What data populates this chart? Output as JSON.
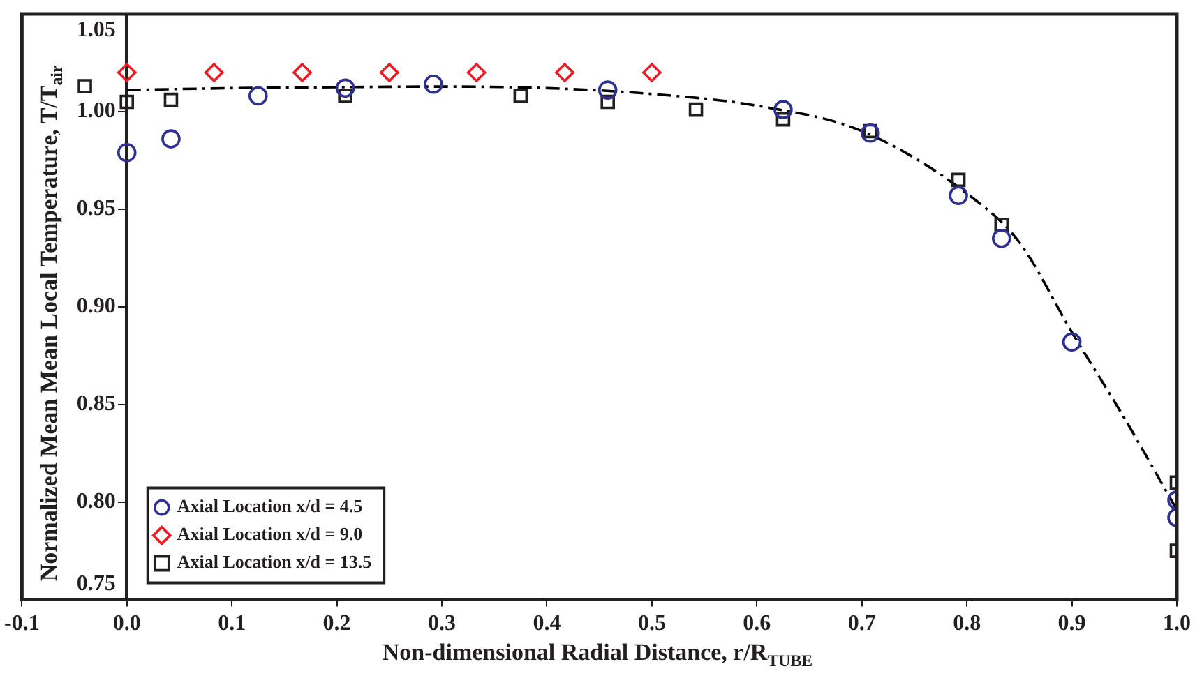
{
  "chart_data": {
    "type": "scatter",
    "xlabel": "Non-dimensional Radial Distance, r/R$_{TUBE}$",
    "ylabel": "Normalized Mean Mean Local Temperature, T/T$_{air}$",
    "xlim": [
      -0.1,
      1.0
    ],
    "xticks": [
      -0.1,
      {
        "value": 0,
        "label": "0.0"
      },
      0.1,
      0.2,
      0.3,
      0.4,
      0.5,
      0.6,
      0.7,
      0.8,
      0.9,
      {
        "value": 1,
        "label": "1.0"
      }
    ],
    "ylim": [
      0.75,
      1.05
    ],
    "yticks": [
      0.75,
      {
        "value": 0.8,
        "label": "0.80"
      },
      0.85,
      {
        "value": 0.9,
        "label": "0.90"
      },
      0.95,
      {
        "value": 1,
        "label": "1.00"
      },
      1.05
    ],
    "grid": false,
    "legend": "bottom left",
    "series": [
      {
        "name": "Axial Location x/d = 4.5",
        "marker": "circle",
        "color": "#2e3192",
        "x": [
          0,
          0.042,
          0.125,
          0.208,
          0.292,
          0.458,
          0.625,
          0.708,
          0.792,
          0.833,
          0.9,
          1.0,
          1.0
        ],
        "values": [
          0.979,
          0.986,
          1.008,
          1.012,
          1.014,
          1.011,
          1.001,
          0.989,
          0.957,
          0.935,
          0.882,
          0.801,
          0.792
        ]
      },
      {
        "name": "Axial Location x/d = 9.0",
        "marker": "diamond",
        "color": "#ed1c24",
        "x": [
          0,
          0.083,
          0.167,
          0.25,
          0.333,
          0.417,
          0.5
        ],
        "values": [
          1.02,
          1.02,
          1.02,
          1.02,
          1.02,
          1.02,
          1.02
        ]
      },
      {
        "name": "Axial Location x/d = 13.5",
        "marker": "square",
        "color": "#231f20",
        "x": [
          -0.04,
          0,
          0.042,
          0.208,
          0.375,
          0.458,
          0.542,
          0.625,
          0.708,
          0.792,
          0.833,
          1.0,
          1.0
        ],
        "values": [
          1.013,
          1.005,
          1.006,
          1.008,
          1.008,
          1.005,
          1.001,
          0.996,
          0.99,
          0.965,
          0.942,
          0.81,
          0.775
        ]
      },
      {
        "type": "line",
        "marker": "none",
        "line_style": "dashed",
        "color": "#000000",
        "x": [
          0,
          0.1,
          0.2,
          0.3,
          0.4,
          0.5,
          0.6,
          0.7,
          0.8,
          0.85,
          0.9,
          0.95,
          1.0
        ],
        "values": [
          1.011,
          1.012,
          1.0125,
          1.0128,
          1.012,
          1.009,
          1.003,
          0.99,
          0.958,
          0.933,
          0.887,
          0.843,
          0.796
        ]
      }
    ]
  }
}
